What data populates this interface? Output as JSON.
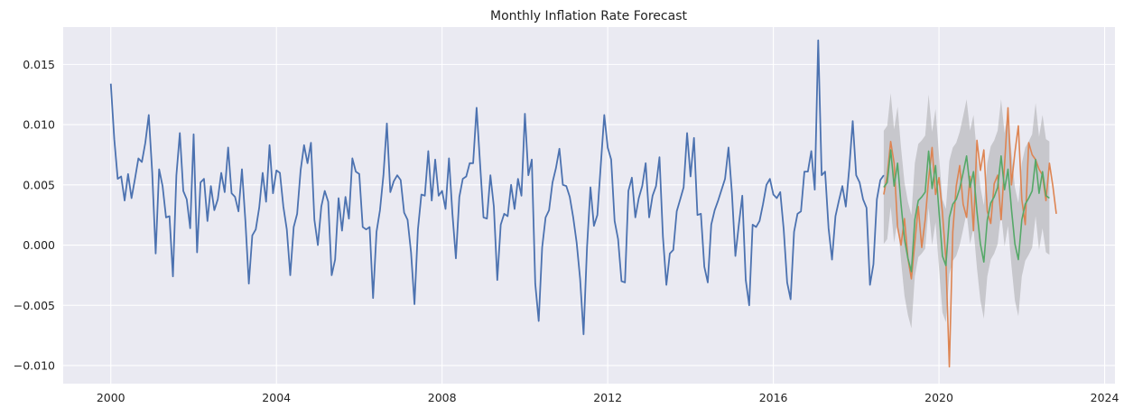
{
  "chart_data": {
    "type": "line",
    "title": "Monthly Inflation Rate Forecast",
    "xlabel": "",
    "ylabel": "",
    "xlim": [
      1998.85,
      2024.25
    ],
    "ylim": [
      -0.0115,
      0.0181
    ],
    "x_ticks": [
      2000,
      2004,
      2008,
      2012,
      2016,
      2020,
      2024
    ],
    "y_ticks": [
      -0.01,
      -0.005,
      0.0,
      0.005,
      0.01,
      0.015
    ],
    "grid": true,
    "legend": "none",
    "colors": {
      "history": "#4c72b0",
      "actual": "#dd8452",
      "forecast": "#55a868",
      "band": "#9e9e9e"
    },
    "history": {
      "start": "2000-01",
      "values": [
        0.0134,
        0.0088,
        0.0055,
        0.0057,
        0.0037,
        0.0059,
        0.0039,
        0.0055,
        0.0072,
        0.0069,
        0.0085,
        0.0108,
        0.006,
        -0.0007,
        0.0063,
        0.0049,
        0.0023,
        0.0024,
        -0.0026,
        0.0058,
        0.0093,
        0.0045,
        0.0038,
        0.0014,
        0.0092,
        -0.0006,
        0.0052,
        0.0055,
        0.002,
        0.0049,
        0.0029,
        0.0038,
        0.006,
        0.0044,
        0.0081,
        0.0043,
        0.004,
        0.0028,
        0.0063,
        0.002,
        -0.0032,
        0.0008,
        0.0013,
        0.0031,
        0.006,
        0.0036,
        0.0083,
        0.0043,
        0.0062,
        0.006,
        0.0032,
        0.0013,
        -0.0025,
        0.0015,
        0.0026,
        0.0062,
        0.0083,
        0.0068,
        0.0085,
        0.0021,
        0.0,
        0.0032,
        0.0045,
        0.0036,
        -0.0025,
        -0.0012,
        0.0039,
        0.0012,
        0.004,
        0.0022,
        0.0072,
        0.0061,
        0.0059,
        0.0015,
        0.0013,
        0.0015,
        -0.0044,
        0.0011,
        0.0029,
        0.0058,
        0.0101,
        0.0044,
        0.0053,
        0.0058,
        0.0054,
        0.0027,
        0.0021,
        -0.0006,
        -0.0049,
        0.0013,
        0.0042,
        0.0041,
        0.0078,
        0.0037,
        0.0071,
        0.0041,
        0.0045,
        0.003,
        0.0072,
        0.0026,
        -0.0011,
        0.004,
        0.0055,
        0.0057,
        0.0068,
        0.0068,
        0.0114,
        0.0068,
        0.0023,
        0.0022,
        0.0058,
        0.0032,
        -0.0029,
        0.0017,
        0.0026,
        0.0024,
        0.005,
        0.003,
        0.0055,
        0.0041,
        0.0109,
        0.0058,
        0.0071,
        -0.0032,
        -0.0063,
        -0.0002,
        0.0023,
        0.0029,
        0.0052,
        0.0064,
        0.008,
        0.005,
        0.0049,
        0.004,
        0.0023,
        0.0002,
        -0.0028,
        -0.0074,
        -0.0002,
        0.0048,
        0.0016,
        0.0025,
        0.0067,
        0.0108,
        0.0081,
        0.0071,
        0.002,
        0.0005,
        -0.003,
        -0.0031,
        0.0045,
        0.0056,
        0.0023,
        0.0039,
        0.0049,
        0.0068,
        0.0023,
        0.0041,
        0.0049,
        0.0073,
        0.0007,
        -0.0033,
        -0.0007,
        -0.0004,
        0.0028,
        0.0038,
        0.0048,
        0.0093,
        0.0057,
        0.0089,
        0.0025,
        0.0026,
        -0.0018,
        -0.0031,
        0.0017,
        0.0029,
        0.0037,
        0.0046,
        0.0055,
        0.0081,
        0.0043,
        -0.0009,
        0.0017,
        0.0041,
        -0.0029,
        -0.005,
        0.0017,
        0.0015,
        0.002,
        0.0034,
        0.005,
        0.0055,
        0.0042,
        0.0039,
        0.0044,
        0.0013,
        -0.0031,
        -0.0045,
        0.0011,
        0.0026,
        0.0028,
        0.0061,
        0.0061,
        0.0078,
        0.0046,
        0.017,
        0.0058,
        0.0061,
        0.0014,
        -0.0012,
        0.0024,
        0.0037,
        0.0049,
        0.0032,
        0.0064,
        0.0103,
        0.0058,
        0.0052,
        0.0038,
        0.0031,
        -0.0033,
        -0.0016,
        0.0038,
        0.0054,
        0.0058
      ]
    },
    "forecast_period": {
      "start": "2018-09",
      "actual": [
        0.0042,
        0.0058,
        0.0086,
        0.0068,
        0.0015,
        0.0,
        0.0022,
        -0.0011,
        -0.0028,
        0.0002,
        0.0032,
        -0.0002,
        0.0021,
        0.0055,
        0.0081,
        0.0042,
        0.0056,
        0.0027,
        -0.0012,
        -0.0101,
        0.0011,
        0.0049,
        0.0066,
        0.0034,
        0.0023,
        0.0057,
        0.0012,
        0.0087,
        0.0062,
        0.0079,
        0.0028,
        0.0018,
        0.0051,
        0.0058,
        0.0021,
        0.0067,
        0.0114,
        0.005,
        0.0077,
        0.0099,
        0.0038,
        0.0017,
        0.0085,
        0.0075,
        0.0071,
        0.0063,
        0.0058,
        0.0037,
        0.0068,
        0.0049,
        0.0026
      ],
      "forecast": [
        0.0048,
        0.0052,
        0.0079,
        0.0049,
        0.0068,
        0.0034,
        0.0005,
        -0.0011,
        -0.0022,
        0.0021,
        0.0037,
        0.004,
        0.0044,
        0.0078,
        0.0047,
        0.0066,
        0.0028,
        -0.0009,
        -0.0017,
        0.0023,
        0.0034,
        0.0038,
        0.0047,
        0.006,
        0.0074,
        0.0048,
        0.0061,
        0.0028,
        0.0001,
        -0.0014,
        0.0021,
        0.0035,
        0.004,
        0.0048,
        0.0074,
        0.0046,
        0.0063,
        0.003,
        0.0001,
        -0.0012,
        0.0021,
        0.0034,
        0.0039,
        0.0045,
        0.0071,
        0.0043,
        0.0061,
        0.0041,
        0.0039
      ],
      "band_halfwidth": 0.0047
    }
  }
}
